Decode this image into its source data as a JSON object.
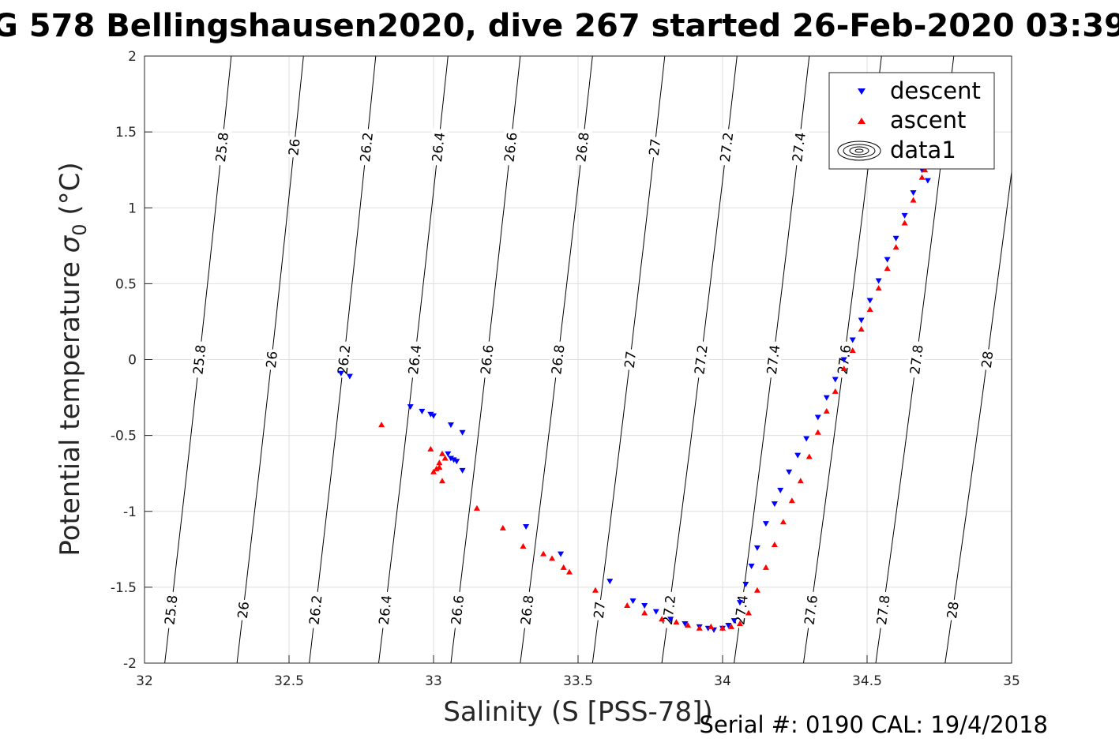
{
  "title": "G 578 Bellingshausen2020, dive 267 started 26-Feb-2020 03:39",
  "footer": "Serial #: 0190  CAL: 19/4/2018",
  "chart_data": {
    "type": "scatter",
    "xlabel": "Salinity (S [PSS-78])",
    "ylabel_main": "Potential temperature ",
    "ylabel_sigma": "σ",
    "ylabel_sub": "0",
    "ylabel_unit": " (°C)",
    "xlim": [
      32,
      35
    ],
    "ylim": [
      -2,
      2
    ],
    "xticks": [
      "32",
      "32.5",
      "33",
      "33.5",
      "34",
      "34.5",
      "35"
    ],
    "yticks": [
      "2",
      "1.5",
      "1",
      "0.5",
      "0",
      "-0.5",
      "-1",
      "-1.5",
      "-2"
    ],
    "grid": true,
    "legend_position": "top-right",
    "legend": [
      "descent",
      "ascent",
      "data1"
    ],
    "density_contours": {
      "levels": [
        25.8,
        26,
        26.2,
        26.4,
        26.6,
        26.8,
        27,
        27.2,
        27.4,
        27.6,
        27.8,
        28
      ],
      "labels": [
        "25.8",
        "26",
        "26.2",
        "26.4",
        "26.6",
        "26.8",
        "27",
        "27.2",
        "27.4",
        "27.6",
        "27.8",
        "28"
      ],
      "salinity_at_minus2": [
        32.07,
        32.32,
        32.57,
        32.81,
        33.06,
        33.3,
        33.55,
        33.79,
        34.04,
        34.28,
        34.53,
        34.77
      ],
      "salinity_at_plus2": [
        32.3,
        32.55,
        32.8,
        33.05,
        33.3,
        33.55,
        33.8,
        34.05,
        34.3,
        34.55,
        34.8,
        35.05
      ]
    },
    "series": [
      {
        "name": "descent",
        "color": "#0000ff",
        "marker": "triangle-down",
        "points": [
          [
            32.68,
            -0.09
          ],
          [
            32.71,
            -0.11
          ],
          [
            32.92,
            -0.31
          ],
          [
            32.96,
            -0.34
          ],
          [
            32.99,
            -0.36
          ],
          [
            33.0,
            -0.37
          ],
          [
            33.06,
            -0.43
          ],
          [
            33.1,
            -0.48
          ],
          [
            33.05,
            -0.62
          ],
          [
            33.06,
            -0.65
          ],
          [
            33.07,
            -0.66
          ],
          [
            33.08,
            -0.67
          ],
          [
            33.1,
            -0.73
          ],
          [
            33.32,
            -1.1
          ],
          [
            33.44,
            -1.28
          ],
          [
            33.61,
            -1.46
          ],
          [
            33.69,
            -1.59
          ],
          [
            33.73,
            -1.62
          ],
          [
            33.77,
            -1.66
          ],
          [
            33.82,
            -1.71
          ],
          [
            33.87,
            -1.74
          ],
          [
            33.92,
            -1.76
          ],
          [
            33.95,
            -1.77
          ],
          [
            33.97,
            -1.78
          ],
          [
            34.0,
            -1.77
          ],
          [
            34.02,
            -1.75
          ],
          [
            34.04,
            -1.72
          ],
          [
            34.06,
            -1.6
          ],
          [
            34.08,
            -1.48
          ],
          [
            34.1,
            -1.36
          ],
          [
            34.12,
            -1.24
          ],
          [
            34.15,
            -1.08
          ],
          [
            34.18,
            -0.95
          ],
          [
            34.2,
            -0.86
          ],
          [
            34.23,
            -0.74
          ],
          [
            34.26,
            -0.63
          ],
          [
            34.29,
            -0.52
          ],
          [
            34.33,
            -0.38
          ],
          [
            34.36,
            -0.25
          ],
          [
            34.39,
            -0.13
          ],
          [
            34.42,
            0.0
          ],
          [
            34.45,
            0.13
          ],
          [
            34.48,
            0.26
          ],
          [
            34.51,
            0.39
          ],
          [
            34.54,
            0.52
          ],
          [
            34.57,
            0.66
          ],
          [
            34.6,
            0.8
          ],
          [
            34.63,
            0.95
          ],
          [
            34.66,
            1.1
          ],
          [
            34.69,
            1.25
          ],
          [
            34.71,
            1.18
          ]
        ]
      },
      {
        "name": "ascent",
        "color": "#ff0000",
        "marker": "triangle-up",
        "points": [
          [
            32.82,
            -0.43
          ],
          [
            32.99,
            -0.59
          ],
          [
            33.03,
            -0.62
          ],
          [
            33.04,
            -0.65
          ],
          [
            33.02,
            -0.68
          ],
          [
            33.01,
            -0.72
          ],
          [
            33.0,
            -0.74
          ],
          [
            33.02,
            -0.71
          ],
          [
            33.03,
            -0.8
          ],
          [
            33.15,
            -0.98
          ],
          [
            33.24,
            -1.11
          ],
          [
            33.31,
            -1.23
          ],
          [
            33.38,
            -1.28
          ],
          [
            33.41,
            -1.31
          ],
          [
            33.45,
            -1.37
          ],
          [
            33.47,
            -1.4
          ],
          [
            33.56,
            -1.52
          ],
          [
            33.67,
            -1.62
          ],
          [
            33.73,
            -1.67
          ],
          [
            33.79,
            -1.71
          ],
          [
            33.84,
            -1.73
          ],
          [
            33.88,
            -1.75
          ],
          [
            33.92,
            -1.77
          ],
          [
            33.96,
            -1.76
          ],
          [
            34.0,
            -1.77
          ],
          [
            34.03,
            -1.76
          ],
          [
            34.06,
            -1.74
          ],
          [
            34.09,
            -1.67
          ],
          [
            34.12,
            -1.52
          ],
          [
            34.15,
            -1.37
          ],
          [
            34.18,
            -1.22
          ],
          [
            34.21,
            -1.07
          ],
          [
            34.24,
            -0.93
          ],
          [
            34.27,
            -0.8
          ],
          [
            34.3,
            -0.64
          ],
          [
            34.33,
            -0.48
          ],
          [
            34.36,
            -0.34
          ],
          [
            34.39,
            -0.21
          ],
          [
            34.42,
            -0.06
          ],
          [
            34.45,
            0.06
          ],
          [
            34.48,
            0.2
          ],
          [
            34.51,
            0.33
          ],
          [
            34.54,
            0.47
          ],
          [
            34.57,
            0.6
          ],
          [
            34.6,
            0.74
          ],
          [
            34.63,
            0.9
          ],
          [
            34.66,
            1.05
          ],
          [
            34.69,
            1.2
          ],
          [
            34.7,
            1.25
          ]
        ]
      }
    ]
  }
}
